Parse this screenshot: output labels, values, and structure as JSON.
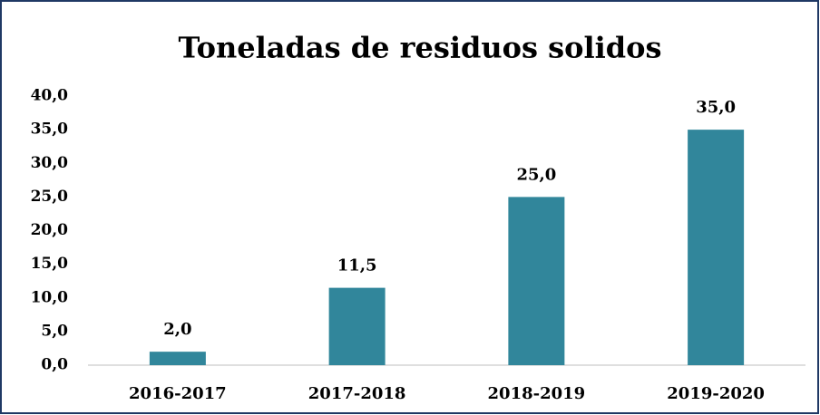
{
  "chart_data": {
    "type": "bar",
    "title": "Toneladas de residuos solidos",
    "categories": [
      "2016-2017",
      "2017-2018",
      "2018-2019",
      "2019-2020"
    ],
    "values": [
      2.0,
      11.5,
      25.0,
      35.0
    ],
    "value_labels": [
      "2,0",
      "11,5",
      "25,0",
      "35,0"
    ],
    "color": "#31869b",
    "ylim": [
      0,
      40
    ],
    "yticks": [
      {
        "value": 0,
        "label": "0,0"
      },
      {
        "value": 5,
        "label": "5,0"
      },
      {
        "value": 10,
        "label": "10,0"
      },
      {
        "value": 15,
        "label": "15,0"
      },
      {
        "value": 20,
        "label": "20,0"
      },
      {
        "value": 25,
        "label": "25,0"
      },
      {
        "value": 30,
        "label": "30,0"
      },
      {
        "value": 35,
        "label": "35,0"
      },
      {
        "value": 40,
        "label": "40,0"
      }
    ],
    "grid": false
  }
}
